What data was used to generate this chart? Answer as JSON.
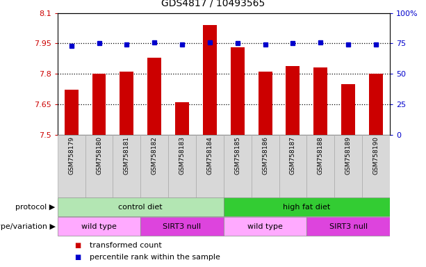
{
  "title": "GDS4817 / 10493565",
  "samples": [
    "GSM758179",
    "GSM758180",
    "GSM758181",
    "GSM758182",
    "GSM758183",
    "GSM758184",
    "GSM758185",
    "GSM758186",
    "GSM758187",
    "GSM758188",
    "GSM758189",
    "GSM758190"
  ],
  "red_values": [
    7.72,
    7.8,
    7.81,
    7.88,
    7.66,
    8.04,
    7.93,
    7.81,
    7.84,
    7.83,
    7.75,
    7.8
  ],
  "blue_values": [
    73,
    75,
    74,
    76,
    74,
    76,
    75,
    74,
    75,
    76,
    74,
    74
  ],
  "ylim_left": [
    7.5,
    8.1
  ],
  "ylim_right": [
    0,
    100
  ],
  "yticks_left": [
    7.5,
    7.65,
    7.8,
    7.95,
    8.1
  ],
  "yticks_right": [
    0,
    25,
    50,
    75,
    100
  ],
  "ytick_labels_left": [
    "7.5",
    "7.65",
    "7.8",
    "7.95",
    "8.1"
  ],
  "ytick_labels_right": [
    "0",
    "25",
    "50",
    "75",
    "100%"
  ],
  "hlines": [
    7.65,
    7.8,
    7.95
  ],
  "protocol_labels": [
    "control diet",
    "high fat diet"
  ],
  "protocol_ranges": [
    [
      0,
      6
    ],
    [
      6,
      12
    ]
  ],
  "protocol_colors": [
    "#b3e6b3",
    "#33cc33"
  ],
  "genotype_labels": [
    "wild type",
    "SIRT3 null",
    "wild type",
    "SIRT3 null"
  ],
  "genotype_ranges": [
    [
      0,
      3
    ],
    [
      3,
      6
    ],
    [
      6,
      9
    ],
    [
      9,
      12
    ]
  ],
  "genotype_colors": [
    "#ffaaff",
    "#dd44dd",
    "#ffaaff",
    "#dd44dd"
  ],
  "red_color": "#cc0000",
  "blue_color": "#0000cc",
  "bar_width": 0.5,
  "legend_red": "transformed count",
  "legend_blue": "percentile rank within the sample",
  "left_label_color": "#cc0000",
  "right_label_color": "#0000cc",
  "row_label_protocol": "protocol",
  "row_label_genotype": "genotype/variation",
  "sample_bg_color": "#d8d8d8",
  "chart_bg_color": "#ffffff"
}
